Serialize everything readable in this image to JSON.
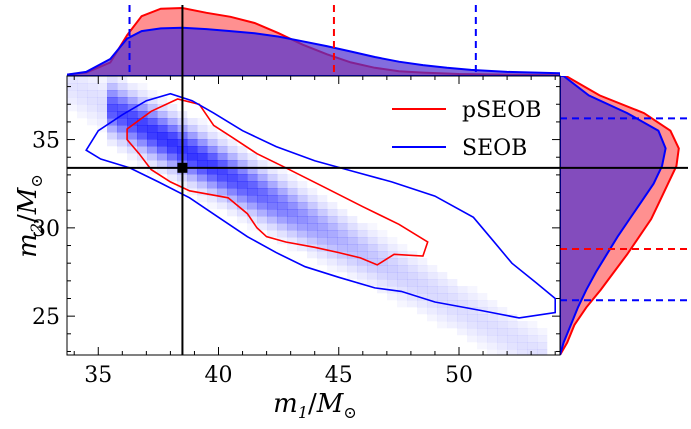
{
  "chart_data": {
    "type": "scatter",
    "subtype": "corner-plot-2d-density-with-marginals",
    "xlabel": "m_1/M_⊙",
    "ylabel": "m_2/M_⊙",
    "xlabel_parts": {
      "var": "m",
      "sub": "1",
      "sep": "/",
      "unit": "M",
      "unit_sub": "⊙"
    },
    "ylabel_parts": {
      "var": "m",
      "sub": "2",
      "sep": "/",
      "unit": "M",
      "unit_sub": "⊙"
    },
    "xlim": [
      33.7,
      54.2
    ],
    "ylim": [
      22.8,
      38.6
    ],
    "xticks": [
      35,
      40,
      45,
      50
    ],
    "yticks": [
      25,
      30,
      35
    ],
    "grid": false,
    "legend_placement": "top-right",
    "injected": {
      "m1": 38.5,
      "m2": 33.4
    },
    "series": [
      {
        "name": "pSEOB",
        "color": "#ff0000",
        "contour_90": [
          [
            36.2,
            35.6
          ],
          [
            37.2,
            36.6
          ],
          [
            38.3,
            37.3
          ],
          [
            39.2,
            37.0
          ],
          [
            39.8,
            35.8
          ],
          [
            40.6,
            35.1
          ],
          [
            41.6,
            34.2
          ],
          [
            42.8,
            33.4
          ],
          [
            44.4,
            32.3
          ],
          [
            46.0,
            31.2
          ],
          [
            47.5,
            30.2
          ],
          [
            48.7,
            29.2
          ],
          [
            48.5,
            28.4
          ],
          [
            47.3,
            28.5
          ],
          [
            46.6,
            27.9
          ],
          [
            45.9,
            28.3
          ],
          [
            45.0,
            28.6
          ],
          [
            44.0,
            28.9
          ],
          [
            42.8,
            29.2
          ],
          [
            42.0,
            29.5
          ],
          [
            41.6,
            30.0
          ],
          [
            41.2,
            30.8
          ],
          [
            40.4,
            31.7
          ],
          [
            39.6,
            31.9
          ],
          [
            38.8,
            32.1
          ],
          [
            38.0,
            32.6
          ],
          [
            37.2,
            33.3
          ],
          [
            36.7,
            34.2
          ],
          [
            36.2,
            35.0
          ],
          [
            36.2,
            35.6
          ]
        ],
        "marginal_x_density": [
          [
            33.7,
            0.02
          ],
          [
            34.5,
            0.05
          ],
          [
            35.5,
            0.2
          ],
          [
            36.2,
            0.6
          ],
          [
            36.8,
            0.88
          ],
          [
            37.6,
            0.99
          ],
          [
            38.5,
            1.0
          ],
          [
            39.5,
            0.93
          ],
          [
            40.5,
            0.87
          ],
          [
            41.5,
            0.78
          ],
          [
            42.5,
            0.63
          ],
          [
            43.5,
            0.46
          ],
          [
            44.5,
            0.32
          ],
          [
            45.5,
            0.2
          ],
          [
            46.5,
            0.12
          ],
          [
            47.5,
            0.07
          ],
          [
            48.5,
            0.05
          ],
          [
            50.0,
            0.03
          ],
          [
            52.0,
            0.02
          ],
          [
            54.2,
            0.01
          ]
        ],
        "marginal_y_density": [
          [
            22.8,
            0.0
          ],
          [
            23.5,
            0.06
          ],
          [
            24.5,
            0.12
          ],
          [
            25.5,
            0.22
          ],
          [
            26.5,
            0.34
          ],
          [
            27.5,
            0.45
          ],
          [
            28.5,
            0.56
          ],
          [
            29.5,
            0.66
          ],
          [
            30.5,
            0.76
          ],
          [
            31.5,
            0.83
          ],
          [
            32.5,
            0.9
          ],
          [
            33.5,
            0.97
          ],
          [
            34.5,
            0.99
          ],
          [
            35.5,
            0.92
          ],
          [
            36.5,
            0.7
          ],
          [
            37.5,
            0.33
          ],
          [
            38.6,
            0.05
          ]
        ],
        "marginal_x_lines": [
          36.3,
          44.8
        ],
        "marginal_y_lines": [
          28.8
        ]
      },
      {
        "name": "SEOB",
        "color": "#0000ff",
        "contour_90": [
          [
            34.5,
            34.4
          ],
          [
            35.0,
            35.5
          ],
          [
            36.0,
            36.4
          ],
          [
            37.0,
            37.2
          ],
          [
            38.0,
            37.6
          ],
          [
            38.9,
            37.2
          ],
          [
            39.8,
            36.5
          ],
          [
            41.0,
            35.5
          ],
          [
            42.4,
            34.6
          ],
          [
            44.0,
            33.8
          ],
          [
            45.6,
            33.2
          ],
          [
            47.2,
            32.6
          ],
          [
            49.0,
            31.8
          ],
          [
            50.6,
            30.6
          ],
          [
            51.4,
            29.3
          ],
          [
            52.2,
            28.0
          ],
          [
            53.2,
            26.9
          ],
          [
            54.0,
            26.0
          ],
          [
            54.0,
            25.2
          ],
          [
            52.5,
            24.9
          ],
          [
            51.0,
            25.3
          ],
          [
            49.0,
            25.8
          ],
          [
            47.6,
            26.4
          ],
          [
            46.5,
            26.6
          ],
          [
            45.0,
            27.2
          ],
          [
            43.6,
            27.8
          ],
          [
            42.4,
            28.6
          ],
          [
            41.2,
            29.5
          ],
          [
            40.0,
            30.6
          ],
          [
            38.8,
            31.7
          ],
          [
            37.5,
            32.6
          ],
          [
            36.3,
            33.4
          ],
          [
            35.1,
            33.9
          ],
          [
            34.5,
            34.4
          ]
        ],
        "marginal_x_density": [
          [
            33.7,
            0.02
          ],
          [
            34.5,
            0.06
          ],
          [
            35.5,
            0.25
          ],
          [
            36.2,
            0.55
          ],
          [
            36.8,
            0.66
          ],
          [
            37.6,
            0.7
          ],
          [
            38.5,
            0.71
          ],
          [
            39.5,
            0.69
          ],
          [
            40.5,
            0.66
          ],
          [
            41.5,
            0.63
          ],
          [
            42.5,
            0.58
          ],
          [
            43.5,
            0.51
          ],
          [
            44.5,
            0.44
          ],
          [
            45.5,
            0.36
          ],
          [
            46.5,
            0.28
          ],
          [
            47.5,
            0.21
          ],
          [
            48.5,
            0.16
          ],
          [
            49.5,
            0.12
          ],
          [
            50.5,
            0.09
          ],
          [
            52.0,
            0.06
          ],
          [
            54.2,
            0.04
          ]
        ],
        "marginal_y_density": [
          [
            22.8,
            0.0
          ],
          [
            23.5,
            0.03
          ],
          [
            24.5,
            0.09
          ],
          [
            25.5,
            0.15
          ],
          [
            26.5,
            0.22
          ],
          [
            27.5,
            0.3
          ],
          [
            28.5,
            0.39
          ],
          [
            29.5,
            0.48
          ],
          [
            30.5,
            0.58
          ],
          [
            31.5,
            0.68
          ],
          [
            32.5,
            0.78
          ],
          [
            33.5,
            0.85
          ],
          [
            34.5,
            0.88
          ],
          [
            35.5,
            0.82
          ],
          [
            36.5,
            0.56
          ],
          [
            37.5,
            0.24
          ],
          [
            38.6,
            0.03
          ]
        ],
        "marginal_x_lines": [
          36.3,
          50.7
        ],
        "marginal_y_lines": [
          25.9,
          36.2
        ]
      }
    ]
  }
}
